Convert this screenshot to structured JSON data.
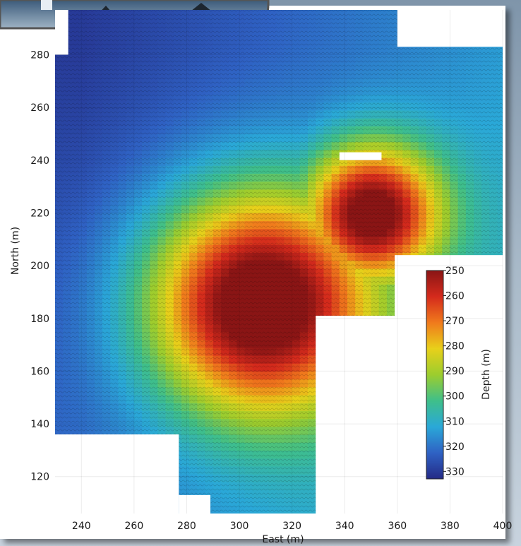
{
  "chart_data": {
    "type": "heatmap",
    "title": "",
    "xlabel": "East (m)",
    "ylabel": "North (m)",
    "xlim": [
      230,
      400
    ],
    "ylim": [
      106,
      297
    ],
    "x_ticks": [
      240,
      260,
      280,
      300,
      320,
      340,
      360,
      380,
      400
    ],
    "y_ticks": [
      120,
      140,
      160,
      180,
      200,
      220,
      240,
      260,
      280
    ],
    "colorbar": {
      "label": "Depth (m)",
      "ticks": [
        250,
        260,
        270,
        280,
        290,
        300,
        310,
        320,
        330
      ],
      "range": [
        250,
        333
      ],
      "colors": [
        "#8a1515",
        "#d42a1c",
        "#f07a1c",
        "#e8d01a",
        "#9ccd2e",
        "#3fbf8a",
        "#2aa8d8",
        "#2f62c4",
        "#242a86"
      ]
    },
    "surface_features": [
      {
        "kind": "peak",
        "east": 308,
        "north": 186,
        "depth": 250
      },
      {
        "kind": "peak",
        "east": 350,
        "north": 220,
        "depth": 257
      },
      {
        "kind": "deepest_region",
        "east": 240,
        "north": 285,
        "depth": 330
      }
    ],
    "grid": true
  }
}
